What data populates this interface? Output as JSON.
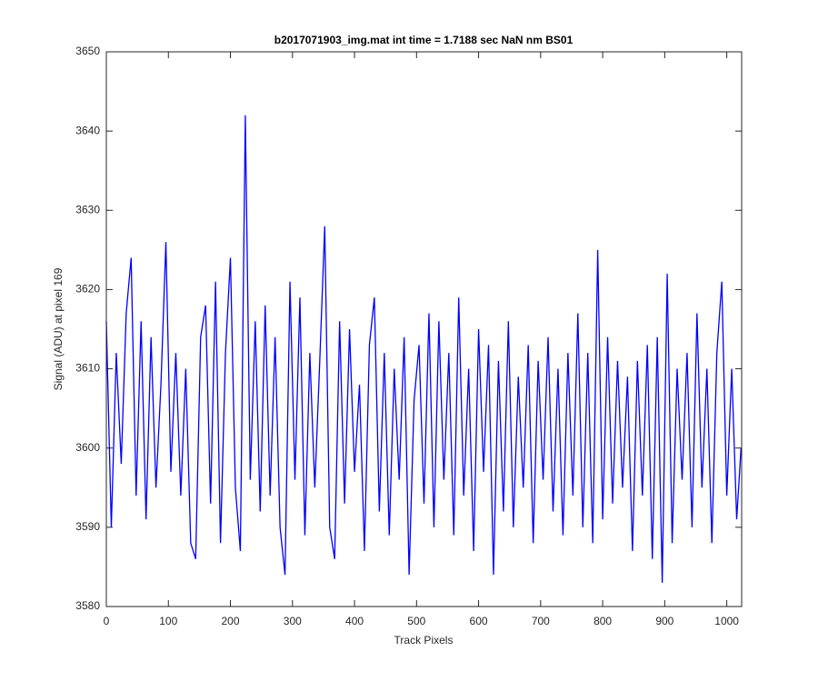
{
  "chart_data": {
    "type": "line",
    "title": "b2017071903_img.mat int time = 1.7188 sec  NaN nm BS01",
    "x_label": "Track Pixels",
    "y_label": "Signal (ADU) at pixel 169",
    "xlim": [
      0,
      1024
    ],
    "xticks": [
      0,
      100,
      200,
      300,
      400,
      500,
      600,
      700,
      800,
      900,
      1000
    ],
    "ylim": [
      3580,
      3650
    ],
    "yticks": [
      3580,
      3590,
      3600,
      3610,
      3620,
      3630,
      3640,
      3650
    ],
    "grid": false,
    "series": [
      {
        "color": "#0000ff",
        "x": [
          0,
          8,
          16,
          24,
          32,
          40,
          48,
          56,
          64,
          72,
          80,
          88,
          96,
          104,
          112,
          120,
          128,
          136,
          144,
          152,
          160,
          168,
          176,
          184,
          192,
          200,
          208,
          216,
          224,
          232,
          240,
          248,
          256,
          264,
          272,
          280,
          288,
          296,
          304,
          312,
          320,
          328,
          336,
          344,
          352,
          360,
          368,
          376,
          384,
          392,
          400,
          408,
          416,
          424,
          432,
          440,
          448,
          456,
          464,
          472,
          480,
          488,
          496,
          504,
          512,
          520,
          528,
          536,
          544,
          552,
          560,
          568,
          576,
          584,
          592,
          600,
          608,
          616,
          624,
          632,
          640,
          648,
          656,
          664,
          672,
          680,
          688,
          696,
          704,
          712,
          720,
          728,
          736,
          744,
          752,
          760,
          768,
          776,
          784,
          792,
          800,
          808,
          816,
          824,
          832,
          840,
          848,
          856,
          864,
          872,
          880,
          888,
          896,
          904,
          912,
          920,
          928,
          936,
          944,
          952,
          960,
          968,
          976,
          984,
          992,
          1000,
          1008,
          1016,
          1023
        ],
        "values": [
          3616,
          3590,
          3612,
          3598,
          3617,
          3624,
          3594,
          3616,
          3591,
          3614,
          3595,
          3608,
          3626,
          3597,
          3612,
          3594,
          3610,
          3588,
          3586,
          3614,
          3618,
          3593,
          3621,
          3588,
          3612,
          3624,
          3595,
          3587,
          3642,
          3596,
          3616,
          3592,
          3618,
          3594,
          3614,
          3590,
          3584,
          3621,
          3596,
          3619,
          3589,
          3612,
          3595,
          3611,
          3628,
          3590,
          3586,
          3616,
          3593,
          3615,
          3597,
          3608,
          3587,
          3613,
          3619,
          3592,
          3612,
          3589,
          3610,
          3596,
          3614,
          3584,
          3606,
          3613,
          3593,
          3617,
          3590,
          3616,
          3596,
          3612,
          3589,
          3619,
          3594,
          3610,
          3587,
          3615,
          3597,
          3613,
          3584,
          3611,
          3592,
          3616,
          3590,
          3609,
          3595,
          3613,
          3588,
          3611,
          3596,
          3614,
          3592,
          3610,
          3589,
          3612,
          3594,
          3617,
          3590,
          3612,
          3588,
          3625,
          3591,
          3614,
          3593,
          3611,
          3595,
          3609,
          3587,
          3611,
          3594,
          3613,
          3586,
          3614,
          3583,
          3622,
          3588,
          3610,
          3596,
          3612,
          3590,
          3617,
          3595,
          3610,
          3588,
          3612,
          3621,
          3594,
          3610,
          3591,
          3600
        ]
      }
    ]
  }
}
